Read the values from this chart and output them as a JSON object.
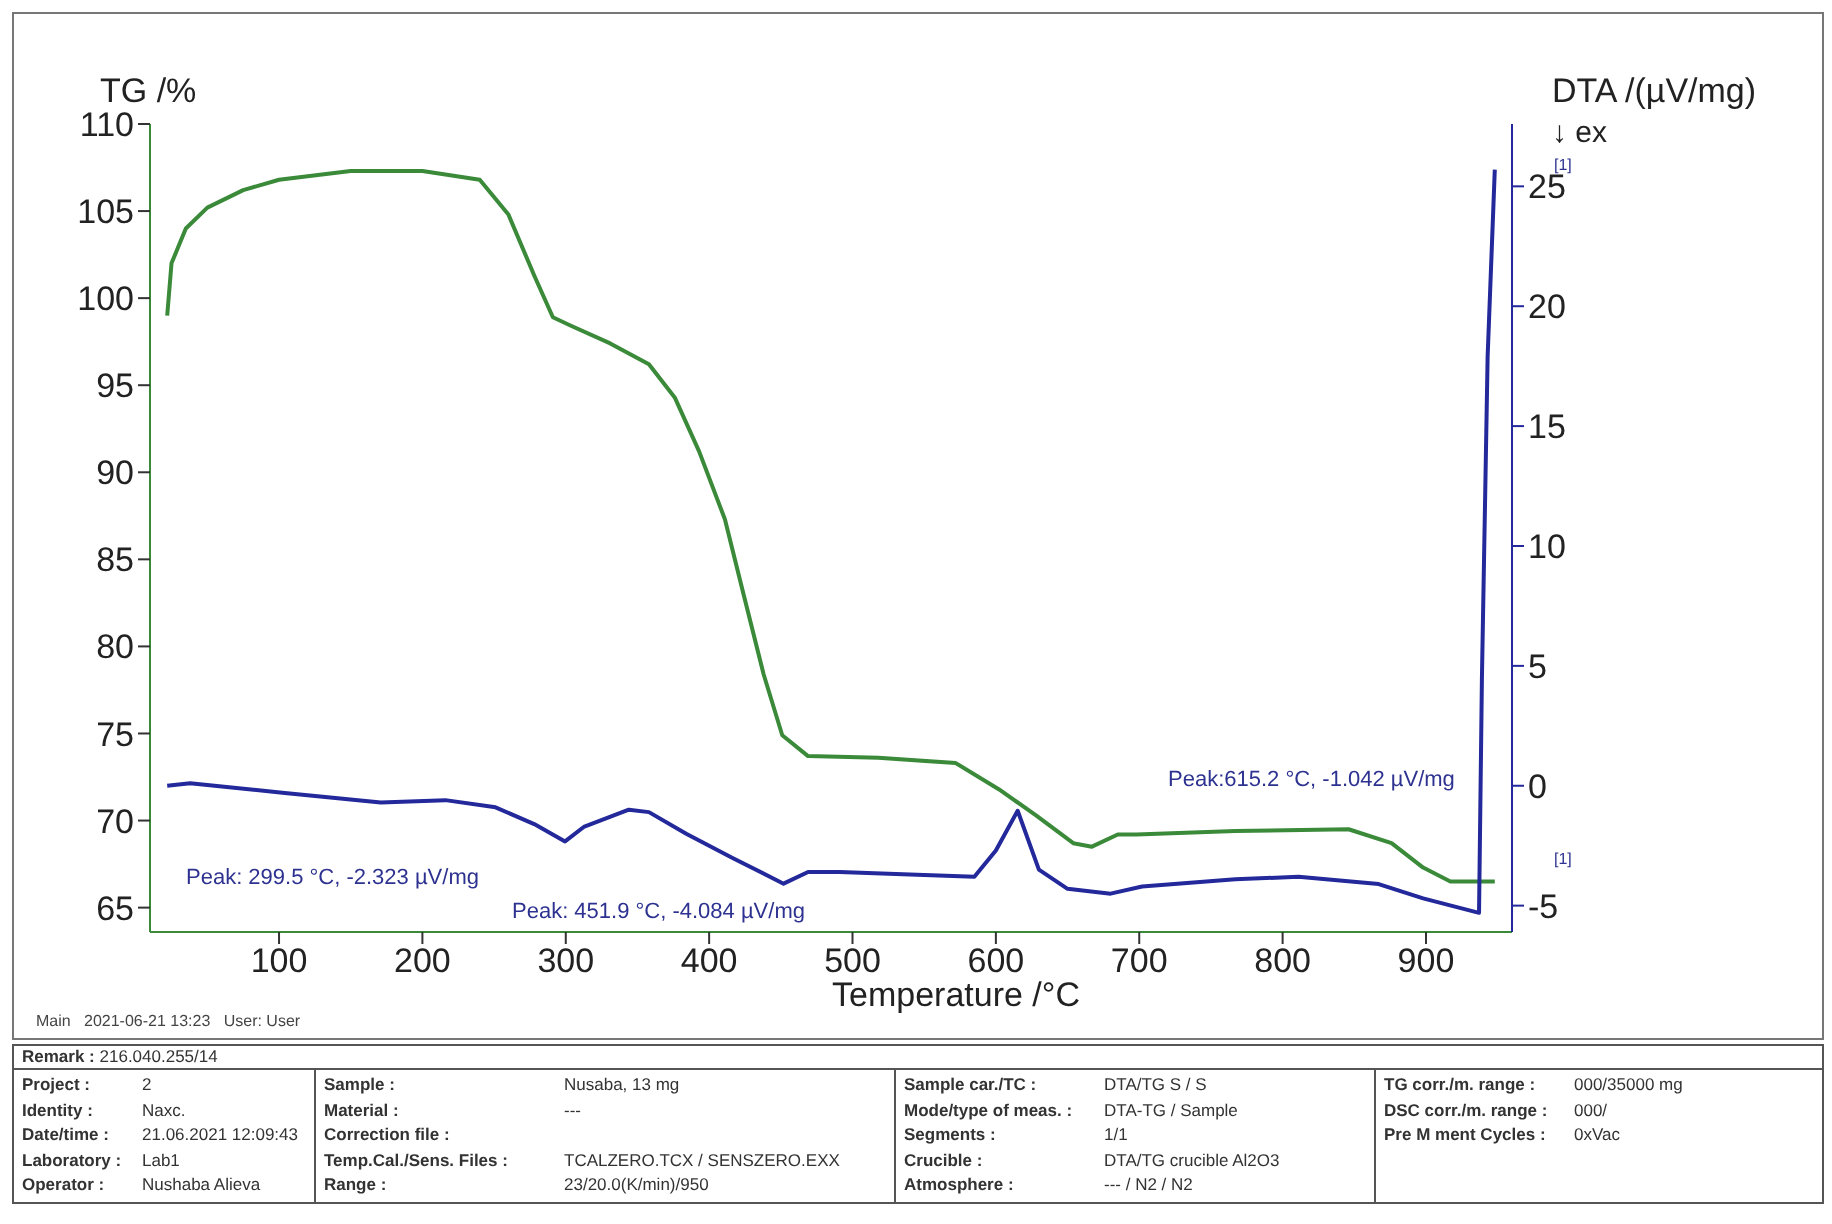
{
  "chart_data": {
    "type": "line",
    "xlabel": "Temperature /°C",
    "ylabel": "TG /%",
    "y2label": "DTA /(µV/mg)",
    "xlim": [
      10,
      960
    ],
    "xticks": [
      100,
      200,
      300,
      400,
      500,
      600,
      700,
      800,
      900
    ],
    "ylim": [
      63.6,
      110
    ],
    "yticks": [
      65,
      70,
      75,
      80,
      85,
      90,
      95,
      100,
      105,
      110
    ],
    "y2lim": [
      -6.1,
      27.6
    ],
    "y2ticks": [
      -5,
      0,
      5,
      10,
      15,
      20,
      25
    ],
    "marker": "none",
    "line_style": "solid",
    "series": [
      {
        "color": "#3a8a3a",
        "x": [
          22,
          25,
          35,
          50,
          75,
          100,
          150,
          200,
          240,
          260,
          278,
          291,
          304,
          331,
          358,
          376,
          393,
          411,
          424,
          438,
          451,
          469,
          518,
          572,
          602,
          628,
          654,
          667,
          685,
          698,
          767,
          846,
          876,
          898,
          917,
          948
        ],
        "values": [
          99.0,
          102.0,
          104.0,
          105.2,
          106.2,
          106.8,
          107.3,
          107.3,
          106.8,
          104.8,
          101.3,
          98.9,
          98.4,
          97.4,
          96.2,
          94.3,
          91.2,
          87.3,
          83.0,
          78.4,
          74.9,
          73.7,
          73.6,
          73.3,
          71.8,
          70.3,
          68.7,
          68.5,
          69.2,
          69.2,
          69.4,
          69.5,
          68.7,
          67.3,
          66.5,
          66.5
        ]
      },
      {
        "color": "#23289a",
        "axis": "y2",
        "x": [
          22,
          38,
          104,
          171,
          216,
          251,
          278,
          299.5,
          313,
          344,
          358,
          384,
          416,
          451.9,
          469,
          491,
          540,
          585,
          600,
          615.2,
          630,
          650,
          680,
          702,
          767,
          811,
          867,
          898,
          937,
          939,
          943,
          948
        ],
        "values": [
          0.0,
          0.1,
          -0.3,
          -0.7,
          -0.6,
          -0.9,
          -1.6,
          -2.323,
          -1.7,
          -1.0,
          -1.1,
          -2.0,
          -3.0,
          -4.084,
          -3.6,
          -3.6,
          -3.7,
          -3.8,
          -2.7,
          -1.042,
          -3.5,
          -4.3,
          -4.5,
          -4.2,
          -3.9,
          -3.8,
          -4.1,
          -4.7,
          -5.3,
          4.4,
          17.9,
          25.7
        ]
      }
    ],
    "annotations": [
      "Peak: 299.5 °C, -2.323 µV/mg",
      "Peak: 451.9 °C, -4.084 µV/mg",
      "Peak:615.2 °C, -1.042 µV/mg",
      "↓ ex",
      "[1]",
      "[1]",
      "Main   2021-06-21 13:23   User: User",
      "Remark : 216.040.255/14",
      "Project : 2",
      "Identity : Naxc.",
      "Date/time : 21.06.2021 12:09:43",
      "Laboratory : Lab1",
      "Operator : Nushaba Alieva",
      "Sample : Nusaba, 13 mg",
      "Material : ---",
      "Correction file :",
      "Temp.Cal./Sens. Files : TCALZERO.TCX / SENSZERO.EXX",
      "Range : 23/20.0(K/min)/950",
      "Sample car./TC : DTA/TG S / S",
      "Mode/type of meas. : DTA-TG / Sample",
      "Segments : 1/1",
      "Crucible : DTA/TG crucible Al2O3",
      "Atmosphere : --- / N2 / N2",
      "TG corr./m. range : 000/35000 mg",
      "DSC corr./m. range : 000/",
      "Pre M ment Cycles : 0xVac"
    ]
  }
}
